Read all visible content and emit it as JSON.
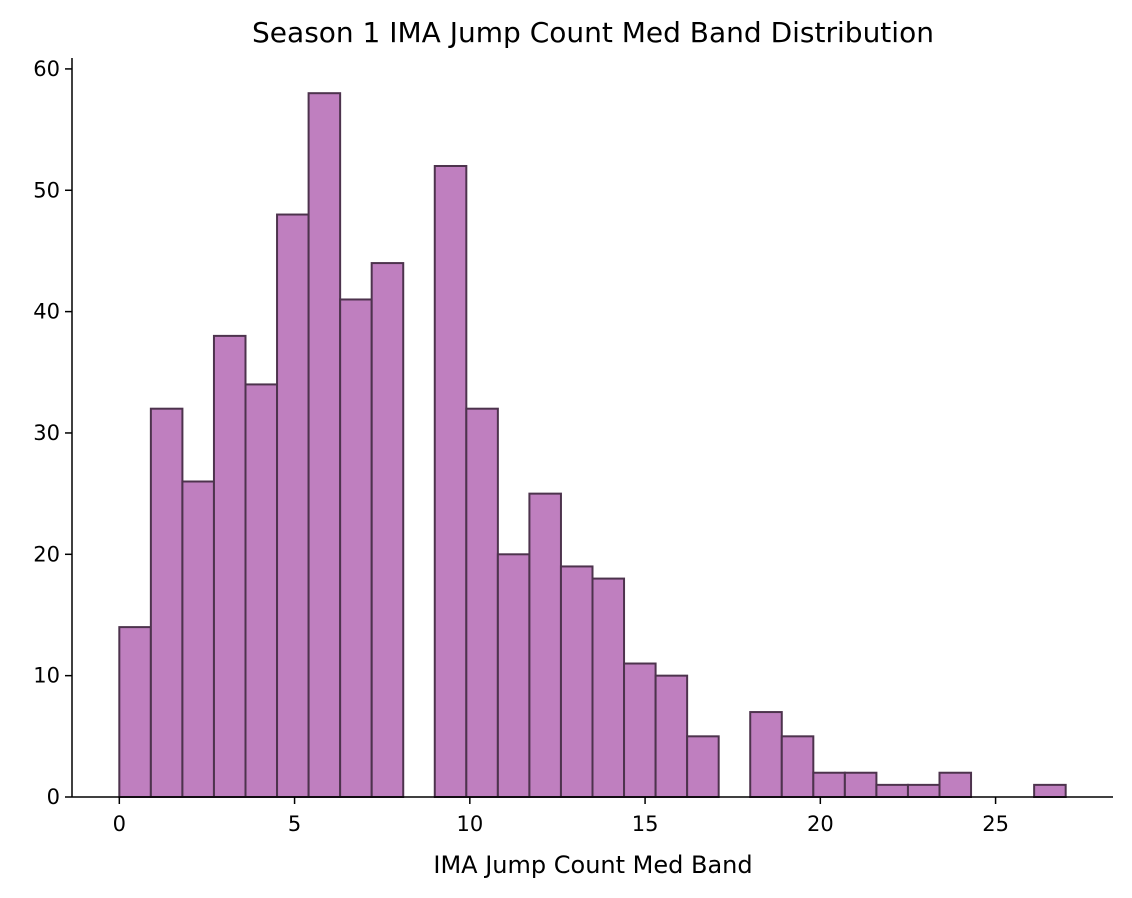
{
  "chart_data": {
    "type": "bar",
    "title": "Season 1 IMA Jump Count Med Band Distribution",
    "xlabel": "IMA Jump Count Med Band",
    "ylabel": "",
    "bin_width": 0.9,
    "bins": [
      {
        "x0": 0.0,
        "x1": 0.9,
        "count": 14
      },
      {
        "x0": 0.9,
        "x1": 1.8,
        "count": 32
      },
      {
        "x0": 1.8,
        "x1": 2.7,
        "count": 26
      },
      {
        "x0": 2.7,
        "x1": 3.6,
        "count": 38
      },
      {
        "x0": 3.6,
        "x1": 4.5,
        "count": 34
      },
      {
        "x0": 4.5,
        "x1": 5.4,
        "count": 48
      },
      {
        "x0": 5.4,
        "x1": 6.3,
        "count": 58
      },
      {
        "x0": 6.3,
        "x1": 7.2,
        "count": 41
      },
      {
        "x0": 7.2,
        "x1": 8.1,
        "count": 44
      },
      {
        "x0": 8.1,
        "x1": 9.0,
        "count": 0
      },
      {
        "x0": 9.0,
        "x1": 9.9,
        "count": 52
      },
      {
        "x0": 9.9,
        "x1": 10.8,
        "count": 32
      },
      {
        "x0": 10.8,
        "x1": 11.7,
        "count": 20
      },
      {
        "x0": 11.7,
        "x1": 12.6,
        "count": 25
      },
      {
        "x0": 12.6,
        "x1": 13.5,
        "count": 19
      },
      {
        "x0": 13.5,
        "x1": 14.4,
        "count": 18
      },
      {
        "x0": 14.4,
        "x1": 15.3,
        "count": 11
      },
      {
        "x0": 15.3,
        "x1": 16.2,
        "count": 10
      },
      {
        "x0": 16.2,
        "x1": 17.1,
        "count": 5
      },
      {
        "x0": 17.1,
        "x1": 18.0,
        "count": 0
      },
      {
        "x0": 18.0,
        "x1": 18.9,
        "count": 7
      },
      {
        "x0": 18.9,
        "x1": 19.8,
        "count": 5
      },
      {
        "x0": 19.8,
        "x1": 20.7,
        "count": 2
      },
      {
        "x0": 20.7,
        "x1": 21.6,
        "count": 2
      },
      {
        "x0": 21.6,
        "x1": 22.5,
        "count": 1
      },
      {
        "x0": 22.5,
        "x1": 23.4,
        "count": 1
      },
      {
        "x0": 23.4,
        "x1": 24.3,
        "count": 2
      },
      {
        "x0": 24.3,
        "x1": 25.2,
        "count": 0
      },
      {
        "x0": 25.2,
        "x1": 26.1,
        "count": 0
      },
      {
        "x0": 26.1,
        "x1": 27.0,
        "count": 1
      }
    ],
    "xlim": [
      -1.35,
      28.35
    ],
    "ylim": [
      0,
      60.9
    ],
    "xticks": [
      0,
      5,
      10,
      15,
      20,
      25
    ],
    "yticks": [
      0,
      10,
      20,
      30,
      40,
      50,
      60
    ],
    "grid": false,
    "legend": "none",
    "colors": {
      "bar_fill": "#bf7fbf",
      "bar_edge": "#4d334d",
      "axis": "#000000"
    }
  }
}
